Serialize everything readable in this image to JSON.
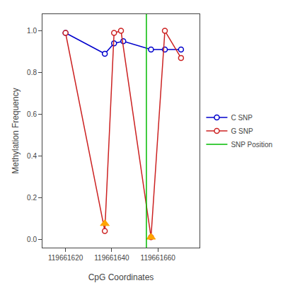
{
  "chart_data": {
    "type": "line",
    "xlabel": "CpG Coordinates",
    "ylabel": "Methylation Frequency",
    "series": [
      {
        "name": "C SNP",
        "type": "line",
        "marker": "circle",
        "line_style": "solid",
        "color": "#0000cc",
        "x": [
          119661620,
          119661637,
          119661641,
          119661645,
          119661657,
          119661663,
          119661670
        ],
        "values": [
          0.99,
          0.89,
          0.94,
          0.95,
          0.91,
          0.91,
          0.91
        ]
      },
      {
        "name": "G SNP",
        "type": "line",
        "marker": "circle",
        "line_style": "solid",
        "color": "#cc2222",
        "x": [
          119661620,
          119661637,
          119661641,
          119661644,
          119661657,
          119661663,
          119661670
        ],
        "values": [
          0.99,
          0.04,
          0.99,
          1.0,
          0.01,
          1.0,
          0.87
        ]
      },
      {
        "type": "scatter",
        "marker": "triangle",
        "color": "#FFA500",
        "x": [
          119661637,
          119661657
        ],
        "values": [
          0.075,
          0.01
        ]
      },
      {
        "name": "SNP Position",
        "type": "vline",
        "line_style": "solid",
        "color": "#00bb00",
        "x": [
          119661655
        ]
      }
    ],
    "xlim": [
      119661610,
      119661678
    ],
    "ylim": [
      -0.04,
      1.08
    ],
    "xticks": [
      119661620,
      119661640,
      119661660
    ],
    "yticks": [
      {
        "value": 0.0,
        "label": "0.0"
      },
      0.2,
      0.4,
      0.6,
      0.8,
      {
        "value": 1.0,
        "label": "1.0"
      }
    ],
    "grid": false,
    "legend": "right"
  }
}
